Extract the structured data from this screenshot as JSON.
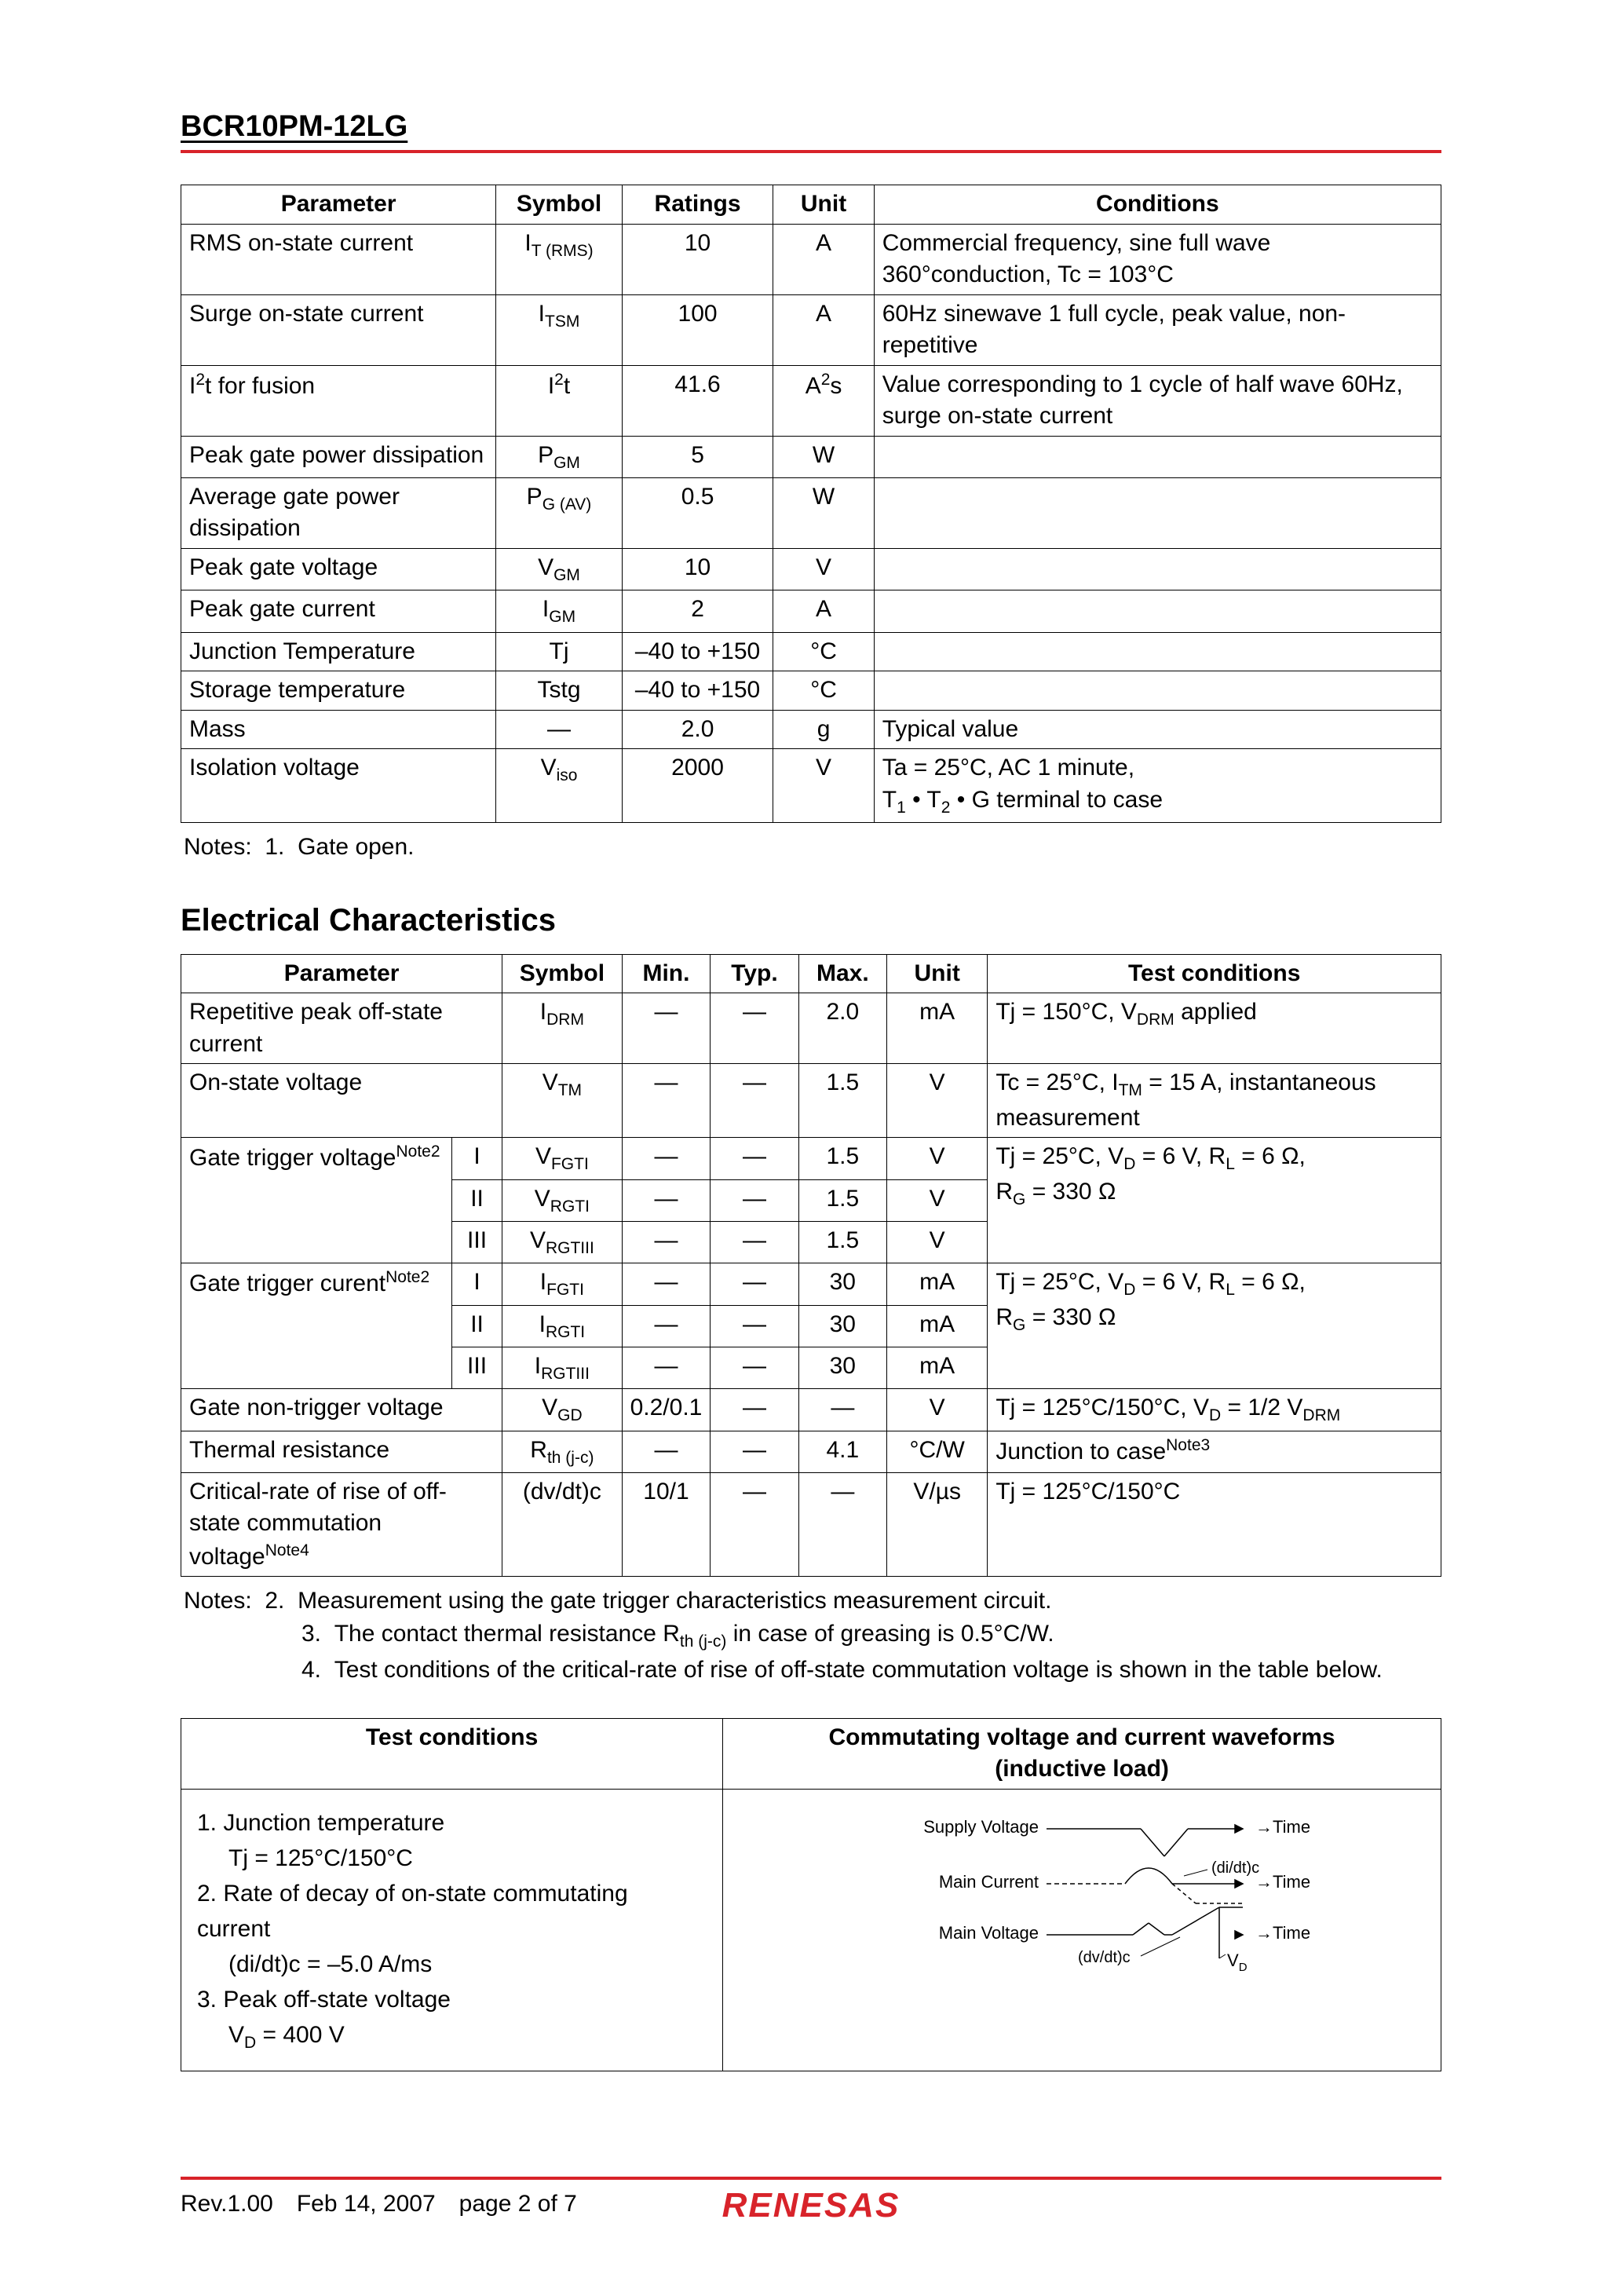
{
  "header": {
    "title": "BCR10PM-12LG"
  },
  "table1": {
    "headers": [
      "Parameter",
      "Symbol",
      "Ratings",
      "Unit",
      "Conditions"
    ],
    "col_widths": [
      "25%",
      "10%",
      "12%",
      "8%",
      "45%"
    ],
    "rows": [
      {
        "param": "RMS on-state current",
        "sym": "I<sub>T (RMS)</sub>",
        "rating": "10",
        "unit": "A",
        "cond": "Commercial frequency, sine full wave 360°conduction, Tc = 103°C"
      },
      {
        "param": "Surge on-state current",
        "sym": "I<sub>TSM</sub>",
        "rating": "100",
        "unit": "A",
        "cond": "60Hz sinewave 1 full cycle, peak value, non-repetitive"
      },
      {
        "param": "I<sup>2</sup>t for fusion",
        "sym": "I<sup>2</sup>t",
        "rating": "41.6",
        "unit": "A<sup>2</sup>s",
        "cond": "Value corresponding to 1 cycle of half wave 60Hz, surge on-state current"
      },
      {
        "param": "Peak gate power dissipation",
        "sym": "P<sub>GM</sub>",
        "rating": "5",
        "unit": "W",
        "cond": ""
      },
      {
        "param": "Average gate power dissipation",
        "sym": "P<sub>G (AV)</sub>",
        "rating": "0.5",
        "unit": "W",
        "cond": ""
      },
      {
        "param": "Peak gate voltage",
        "sym": "V<sub>GM</sub>",
        "rating": "10",
        "unit": "V",
        "cond": ""
      },
      {
        "param": "Peak gate current",
        "sym": "I<sub>GM</sub>",
        "rating": "2",
        "unit": "A",
        "cond": ""
      },
      {
        "param": "Junction Temperature",
        "sym": "Tj",
        "rating": "–40 to +150",
        "unit": "°C",
        "cond": ""
      },
      {
        "param": "Storage temperature",
        "sym": "Tstg",
        "rating": "–40 to +150",
        "unit": "°C",
        "cond": ""
      },
      {
        "param": "Mass",
        "sym": "—",
        "rating": "2.0",
        "unit": "g",
        "cond": "Typical value"
      },
      {
        "param": "Isolation voltage",
        "sym": "V<sub>iso</sub>",
        "rating": "2000",
        "unit": "V",
        "cond": "Ta = 25°C, AC 1 minute,<br>T<sub>1</sub> • T<sub>2</sub> • G terminal to case"
      }
    ]
  },
  "notes1": "Notes:&nbsp;&nbsp;1.&nbsp;&nbsp;Gate open.",
  "section2_title": "Electrical Characteristics",
  "table2": {
    "headers": [
      "Parameter",
      "Symbol",
      "Min.",
      "Typ.",
      "Max.",
      "Unit",
      "Test conditions"
    ],
    "col_widths": [
      "21.5%",
      "4%",
      "9.5%",
      "7%",
      "7%",
      "7%",
      "8%",
      "36%"
    ],
    "rows_html": "<tr><td colspan=\"2\" class=\"param-col\">Repetitive peak off-state current</td><td class=\"sym-col\">I<sub>DRM</sub></td><td class=\"num-col\">—</td><td class=\"num-col\">—</td><td class=\"num-col\">2.0</td><td class=\"unit-col\">mA</td><td class=\"cond-col\">Tj = 150°C, V<sub>DRM</sub> applied</td></tr><tr><td colspan=\"2\" class=\"param-col\">On-state voltage</td><td class=\"sym-col\">V<sub>TM</sub></td><td class=\"num-col\">—</td><td class=\"num-col\">—</td><td class=\"num-col\">1.5</td><td class=\"unit-col\">V</td><td class=\"cond-col\">Tc = 25°C, I<sub>TM</sub> = 15 A, instantaneous measurement</td></tr><tr><td rowspan=\"3\" class=\"param-col\">Gate trigger voltage<sup>Note2</sup></td><td class=\"sym-col\">I</td><td class=\"sym-col\">V<sub>FGTI</sub></td><td class=\"num-col\">—</td><td class=\"num-col\">—</td><td class=\"num-col\">1.5</td><td class=\"unit-col\">V</td><td rowspan=\"3\" class=\"cond-col\">Tj = 25°C, V<sub>D</sub> = 6 V, R<sub>L</sub> = 6 Ω,<br>R<sub>G</sub> = 330 Ω</td></tr><tr><td class=\"sym-col\">II</td><td class=\"sym-col\">V<sub>RGTI</sub></td><td class=\"num-col\">—</td><td class=\"num-col\">—</td><td class=\"num-col\">1.5</td><td class=\"unit-col\">V</td></tr><tr><td class=\"sym-col\">III</td><td class=\"sym-col\">V<sub>RGTIII</sub></td><td class=\"num-col\">—</td><td class=\"num-col\">—</td><td class=\"num-col\">1.5</td><td class=\"unit-col\">V</td></tr><tr><td rowspan=\"3\" class=\"param-col\">Gate trigger curent<sup>Note2</sup></td><td class=\"sym-col\">I</td><td class=\"sym-col\">I<sub>FGTI</sub></td><td class=\"num-col\">—</td><td class=\"num-col\">—</td><td class=\"num-col\">30</td><td class=\"unit-col\">mA</td><td rowspan=\"3\" class=\"cond-col\">Tj = 25°C, V<sub>D</sub> = 6 V, R<sub>L</sub> = 6 Ω,<br>R<sub>G</sub> = 330 Ω</td></tr><tr><td class=\"sym-col\">II</td><td class=\"sym-col\">I<sub>RGTI</sub></td><td class=\"num-col\">—</td><td class=\"num-col\">—</td><td class=\"num-col\">30</td><td class=\"unit-col\">mA</td></tr><tr><td class=\"sym-col\">III</td><td class=\"sym-col\">I<sub>RGTIII</sub></td><td class=\"num-col\">—</td><td class=\"num-col\">—</td><td class=\"num-col\">30</td><td class=\"unit-col\">mA</td></tr><tr><td colspan=\"2\" class=\"param-col\">Gate non-trigger voltage</td><td class=\"sym-col\">V<sub>GD</sub></td><td class=\"num-col\">0.2/0.1</td><td class=\"num-col\">—</td><td class=\"num-col\">—</td><td class=\"unit-col\">V</td><td class=\"cond-col\">Tj = 125°C/150°C, V<sub>D</sub> = 1/2 V<sub>DRM</sub></td></tr><tr><td colspan=\"2\" class=\"param-col\">Thermal resistance</td><td class=\"sym-col\">R<sub>th (j-c)</sub></td><td class=\"num-col\">—</td><td class=\"num-col\">—</td><td class=\"num-col\">4.1</td><td class=\"unit-col\">°C/W</td><td class=\"cond-col\">Junction to case<sup>Note3</sup></td></tr><tr><td colspan=\"2\" class=\"param-col\">Critical-rate of rise of off-state commutation voltage<sup>Note4</sup></td><td class=\"sym-col\">(dv/dt)c</td><td class=\"num-col\">10/1</td><td class=\"num-col\">—</td><td class=\"num-col\">—</td><td class=\"unit-col\">V/µs</td><td class=\"cond-col\">Tj = 125°C/150°C</td></tr>"
  },
  "notes2": [
    "Notes:&nbsp;&nbsp;2.&nbsp;&nbsp;Measurement using the gate trigger characteristics measurement circuit.",
    "3.&nbsp;&nbsp;The contact thermal resistance R<sub>th (j-c)</sub> in case of greasing is 0.5°C/W.",
    "4.&nbsp;&nbsp;Test conditions of the critical-rate of rise of off-state commutation voltage is shown in the table below."
  ],
  "table3": {
    "headers": [
      "Test conditions",
      "Commutating voltage and current waveforms<br>(inductive load)"
    ],
    "col_widths": [
      "43%",
      "57%"
    ],
    "left_html": "1. Junction temperature<br><span class=\"wave-left-indent\">Tj = 125°C/150°C</span><br>2. Rate of decay of on-state commutating current<br><span class=\"wave-left-indent\">(di/dt)c = –5.0 A/ms</span><br>3. Peak off-state voltage<br><span class=\"wave-left-indent\">V<sub>D</sub> = 400 V</span>",
    "waveform": {
      "labels": {
        "supply": "Supply Voltage",
        "main_current": "Main Current",
        "main_voltage": "Main Voltage",
        "time": "Time",
        "didtc": "(di/dt)c",
        "dvdtc": "(dv/dt)c",
        "vd": "V",
        "vd_sub": "D"
      },
      "colors": {
        "stroke": "#000000"
      }
    }
  },
  "footer": {
    "rev": "Rev.1.00",
    "date": "Feb 14, 2007",
    "page": "page  2  of 7",
    "logo": "RENESAS"
  }
}
